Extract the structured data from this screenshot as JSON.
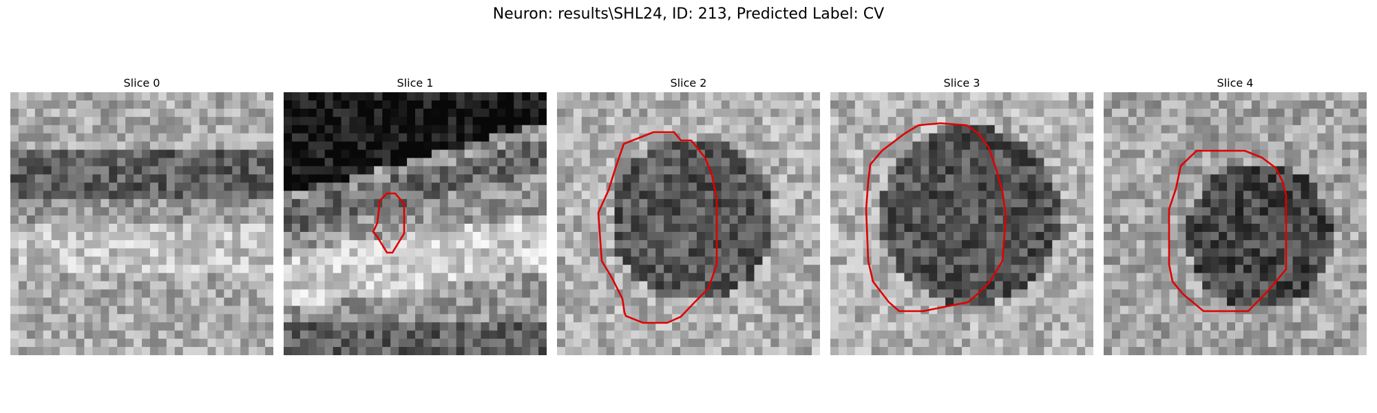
{
  "figure": {
    "title": "Neuron: results\\SHL24, ID: 213, Predicted Label: CV"
  },
  "panels": [
    {
      "title": "Slice 0",
      "contour": null
    },
    {
      "title": "Slice 1",
      "contour": {
        "color": "#e00000"
      }
    },
    {
      "title": "Slice 2",
      "contour": {
        "color": "#e00000"
      }
    },
    {
      "title": "Slice 3",
      "contour": {
        "color": "#e00000"
      }
    },
    {
      "title": "Slice 4",
      "contour": {
        "color": "#e00000"
      }
    }
  ],
  "colors": {
    "contour": "#e00000",
    "background": "#ffffff"
  }
}
